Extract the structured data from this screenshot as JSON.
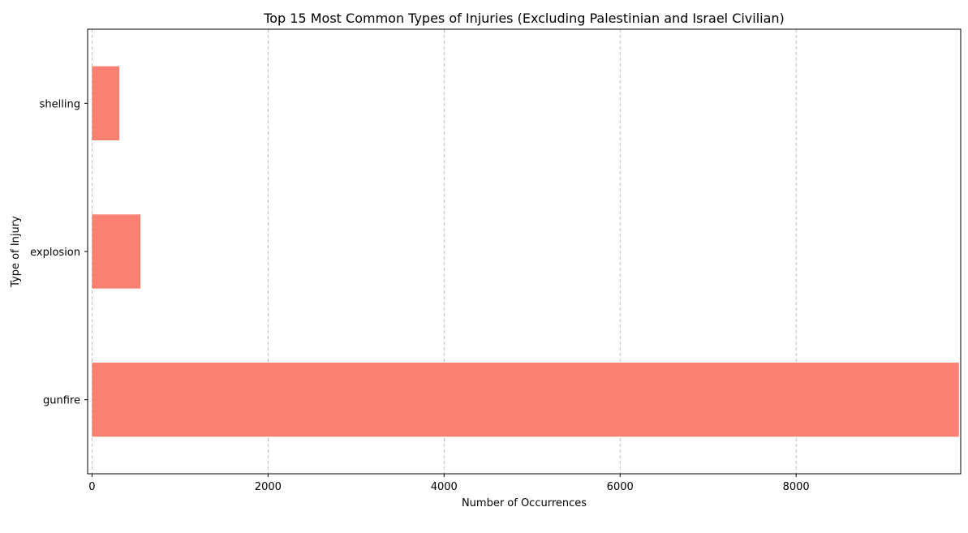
{
  "chart_data": {
    "type": "bar",
    "orientation": "horizontal",
    "title": "Top 15 Most Common Types of Injuries (Excluding Palestinian and Israel Civilian)",
    "xlabel": "Number of Occurrences",
    "ylabel": "Type of Injury",
    "categories": [
      "gunfire",
      "explosion",
      "shelling"
    ],
    "values": [
      9850,
      550,
      310
    ],
    "xlim": [
      -50,
      9870
    ],
    "xticks": [
      0,
      2000,
      4000,
      6000,
      8000
    ],
    "xtick_labels": [
      "0",
      "2000",
      "4000",
      "6000",
      "8000"
    ],
    "grid": "x-axis, dashed",
    "bar_color": "#fa8072",
    "grid_color": "#b0b0b0"
  }
}
